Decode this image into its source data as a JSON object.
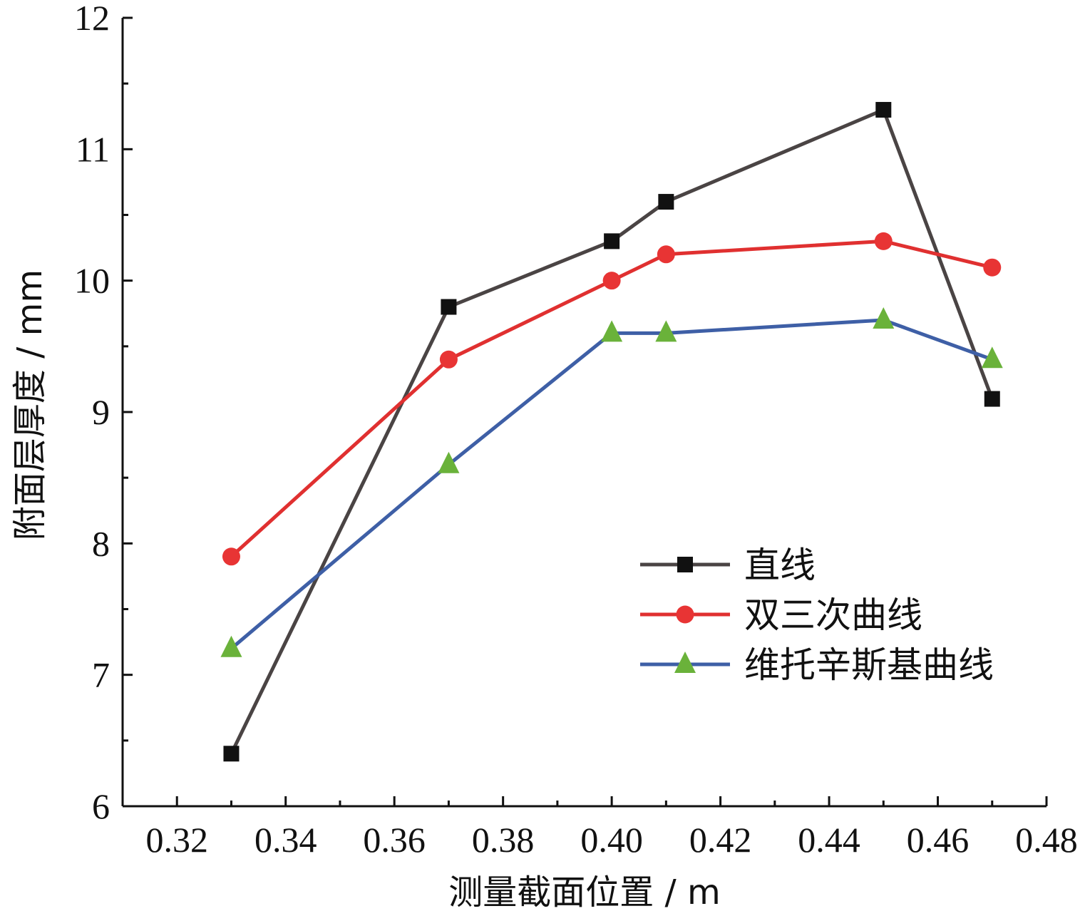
{
  "chart_data": {
    "type": "line",
    "xlabel": "测量截面位置 / m",
    "ylabel": "附面层厚度 / mm",
    "xlim": [
      0.31,
      0.48
    ],
    "ylim": [
      6,
      12
    ],
    "xticks": [
      0.32,
      0.34,
      0.36,
      0.38,
      0.4,
      0.42,
      0.44,
      0.46,
      0.48
    ],
    "xtick_labels": [
      "0.32",
      "0.34",
      "0.36",
      "0.38",
      "0.40",
      "0.42",
      "0.44",
      "0.46",
      "0.48"
    ],
    "yticks": [
      6,
      7,
      8,
      9,
      10,
      11,
      12
    ],
    "ytick_labels": [
      "6",
      "7",
      "8",
      "9",
      "10",
      "11",
      "12"
    ],
    "grid": false,
    "legend_position": "bottom-right",
    "x": [
      0.33,
      0.37,
      0.4,
      0.41,
      0.45,
      0.47
    ],
    "series": [
      {
        "name": "直线",
        "marker": "square",
        "line_color": "#4a4444",
        "marker_color": "#111111",
        "values": [
          6.4,
          9.8,
          10.3,
          10.6,
          11.3,
          9.1
        ]
      },
      {
        "name": "双三次曲线",
        "marker": "circle",
        "line_color": "#e03030",
        "marker_color": "#e83434",
        "values": [
          7.9,
          9.4,
          10.0,
          10.2,
          10.3,
          10.1
        ]
      },
      {
        "name": "维托辛斯基曲线",
        "marker": "triangle",
        "line_color": "#3e5fa6",
        "marker_color": "#6ab23a",
        "values": [
          7.2,
          8.6,
          9.6,
          9.6,
          9.7,
          9.4
        ]
      }
    ]
  }
}
